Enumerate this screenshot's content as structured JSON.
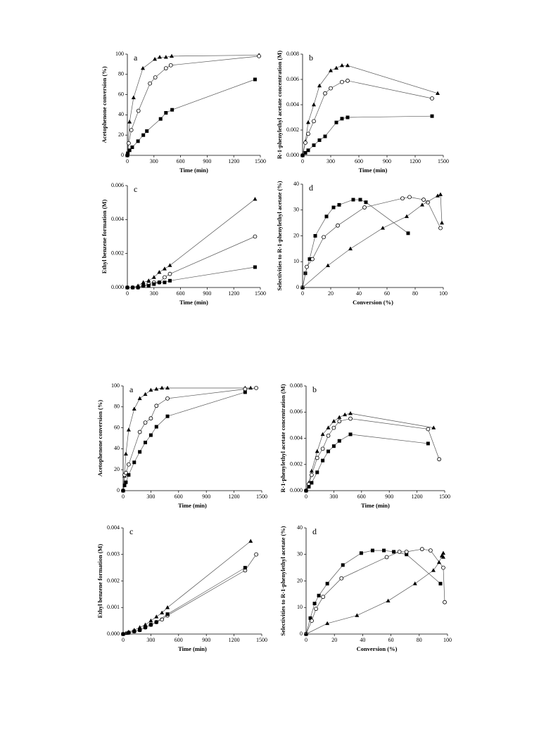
{
  "chart_data": [
    {
      "type": "line",
      "label": "a",
      "xlabel": "Time (min)",
      "ylabel": "Acetophenone conversion (%)",
      "xlim": [
        0,
        1500
      ],
      "xticks": [
        0,
        300,
        600,
        900,
        1200,
        1500
      ],
      "ylim": [
        0,
        100
      ],
      "yticks": [
        0,
        20,
        40,
        60,
        80,
        100
      ],
      "series": [
        {
          "marker": "triangle",
          "color": "#000000",
          "x": [
            0,
            25,
            70,
            175,
            310,
            365,
            435,
            500,
            1485
          ],
          "values": [
            0,
            33,
            57,
            86,
            95,
            97,
            97,
            98,
            99
          ]
        },
        {
          "marker": "circle",
          "color": "#000000",
          "x": [
            0,
            15,
            45,
            125,
            255,
            315,
            435,
            490,
            1485
          ],
          "values": [
            0,
            12,
            25,
            44,
            71,
            77,
            86,
            89,
            98
          ]
        },
        {
          "marker": "square",
          "color": "#000000",
          "x": [
            0,
            5,
            25,
            55,
            120,
            180,
            220,
            375,
            435,
            505,
            1440
          ],
          "values": [
            0,
            2,
            5,
            8,
            14,
            20,
            24,
            36,
            42,
            45,
            75
          ]
        }
      ]
    },
    {
      "type": "line",
      "label": "b",
      "xlabel": "Time (min)",
      "ylabel": "R-1-phenylethyl acetate concentration (M)",
      "xlim": [
        0,
        1500
      ],
      "xticks": [
        0,
        300,
        600,
        900,
        1200,
        1500
      ],
      "ylim": [
        0,
        0.008
      ],
      "yticks": [
        {
          "value": 0,
          "label": "0.000"
        },
        {
          "value": 0.002,
          "label": "0.002"
        },
        {
          "value": 0.004,
          "label": "0.004"
        },
        {
          "value": 0.006,
          "label": "0.006"
        },
        {
          "value": 0.008,
          "label": "0.008"
        }
      ],
      "series": [
        {
          "marker": "triangle",
          "color": "#000000",
          "x": [
            0,
            30,
            60,
            120,
            180,
            300,
            360,
            420,
            480,
            1440
          ],
          "values": [
            0,
            0.0011,
            0.0026,
            0.004,
            0.0055,
            0.0067,
            0.0069,
            0.0071,
            0.0071,
            0.0049
          ]
        },
        {
          "marker": "circle",
          "color": "#000000",
          "x": [
            0,
            30,
            60,
            120,
            240,
            300,
            420,
            480,
            1380
          ],
          "values": [
            0,
            0.001,
            0.0017,
            0.0027,
            0.0049,
            0.0053,
            0.0058,
            0.0059,
            0.0045
          ]
        },
        {
          "marker": "square",
          "color": "#000000",
          "x": [
            0,
            30,
            60,
            120,
            180,
            240,
            360,
            420,
            480,
            1380
          ],
          "values": [
            0,
            0.0002,
            0.0004,
            0.0008,
            0.0012,
            0.0015,
            0.0026,
            0.0029,
            0.003,
            0.0031
          ]
        }
      ]
    },
    {
      "type": "line",
      "label": "c",
      "xlabel": "Time (min)",
      "ylabel": "Ethyl benzene formation (M)",
      "xlim": [
        0,
        1500
      ],
      "xticks": [
        0,
        300,
        600,
        900,
        1200,
        1500
      ],
      "ylim": [
        0,
        0.006
      ],
      "yticks": [
        {
          "value": 0,
          "label": "0.000"
        },
        {
          "value": 0.002,
          "label": "0.002"
        },
        {
          "value": 0.004,
          "label": "0.004"
        },
        {
          "value": 0.006,
          "label": "0.006"
        }
      ],
      "series": [
        {
          "marker": "triangle",
          "color": "#000000",
          "x": [
            0,
            60,
            120,
            180,
            240,
            300,
            360,
            420,
            480,
            1440
          ],
          "values": [
            0,
            0,
            0.0001,
            0.0003,
            0.0004,
            0.0006,
            0.0009,
            0.0011,
            0.0013,
            0.0052
          ]
        },
        {
          "marker": "circle",
          "color": "#000000",
          "x": [
            0,
            60,
            120,
            180,
            240,
            300,
            360,
            420,
            480,
            1440
          ],
          "values": [
            0,
            0,
            0,
            0.0001,
            0.0002,
            0.0003,
            0.0003,
            0.0006,
            0.0008,
            0.003
          ]
        },
        {
          "marker": "square",
          "color": "#000000",
          "x": [
            0,
            60,
            120,
            180,
            240,
            300,
            360,
            420,
            480,
            1440
          ],
          "values": [
            0,
            0,
            0,
            0.0001,
            0.0001,
            0.0002,
            0.0003,
            0.0003,
            0.0004,
            0.0012
          ]
        }
      ]
    },
    {
      "type": "line",
      "label": "d",
      "xlabel": "Conversion (%)",
      "ylabel": "Selectivities to R-1-phenylethyl acetate (%)",
      "xlim": [
        0,
        100
      ],
      "xticks": [
        0,
        20,
        40,
        60,
        80,
        100
      ],
      "ylim": [
        0,
        40
      ],
      "yticks": [
        0,
        10,
        20,
        30,
        40
      ],
      "series": [
        {
          "marker": "square",
          "color": "#000000",
          "x": [
            0,
            2,
            5,
            9,
            17,
            22,
            26,
            36,
            41,
            45,
            75
          ],
          "values": [
            0,
            5.5,
            11,
            20,
            27.5,
            31,
            32,
            34,
            34,
            33,
            21
          ]
        },
        {
          "marker": "circle",
          "color": "#000000",
          "x": [
            0,
            3,
            7,
            15,
            25,
            44,
            71,
            76,
            86,
            89,
            98
          ],
          "values": [
            0,
            8,
            11,
            19.5,
            24,
            31,
            34.5,
            35,
            34,
            33,
            23
          ]
        },
        {
          "marker": "triangle",
          "color": "#000000",
          "x": [
            0,
            18,
            34,
            57,
            74,
            85,
            96,
            98,
            99
          ],
          "values": [
            0,
            8.5,
            15,
            23,
            27.5,
            32,
            35.5,
            36,
            25
          ]
        }
      ]
    },
    {
      "type": "line",
      "label": "a",
      "xlabel": "Time (min)",
      "ylabel": "Acetophenone conversion (%)",
      "xlim": [
        0,
        1500
      ],
      "xticks": [
        0,
        300,
        600,
        900,
        1200,
        1500
      ],
      "ylim": [
        0,
        100
      ],
      "yticks": [
        0,
        20,
        40,
        60,
        80,
        100
      ],
      "series": [
        {
          "marker": "triangle",
          "color": "#000000",
          "x": [
            0,
            15,
            30,
            60,
            120,
            180,
            240,
            300,
            360,
            420,
            480,
            1320,
            1380
          ],
          "values": [
            0,
            14,
            35,
            58,
            78,
            88,
            92,
            96,
            97,
            98,
            98,
            98,
            98
          ]
        },
        {
          "marker": "circle",
          "color": "#000000",
          "x": [
            0,
            15,
            30,
            60,
            180,
            240,
            300,
            360,
            480,
            1320,
            1440
          ],
          "values": [
            0,
            15,
            17,
            25,
            56,
            65,
            69,
            81,
            88,
            97,
            98
          ]
        },
        {
          "marker": "square",
          "color": "#000000",
          "x": [
            0,
            15,
            30,
            60,
            120,
            180,
            240,
            300,
            360,
            480,
            1320
          ],
          "values": [
            0,
            5,
            8,
            15,
            27,
            37,
            46,
            53,
            61,
            71,
            94
          ]
        }
      ]
    },
    {
      "type": "line",
      "label": "b",
      "xlabel": "Time (min)",
      "ylabel": "R-1-phenylethyl acetate concentration (M)",
      "xlim": [
        0,
        1500
      ],
      "xticks": [
        0,
        300,
        600,
        900,
        1200,
        1500
      ],
      "ylim": [
        0,
        0.008
      ],
      "yticks": [
        {
          "value": 0,
          "label": "0.000"
        },
        {
          "value": 0.002,
          "label": "0.002"
        },
        {
          "value": 0.004,
          "label": "0.004"
        },
        {
          "value": 0.006,
          "label": "0.006"
        },
        {
          "value": 0.008,
          "label": "0.008"
        }
      ],
      "series": [
        {
          "marker": "triangle",
          "color": "#000000",
          "x": [
            0,
            30,
            60,
            120,
            180,
            240,
            300,
            360,
            420,
            480,
            1380
          ],
          "values": [
            0,
            0.0006,
            0.0015,
            0.003,
            0.0043,
            0.0048,
            0.0053,
            0.0056,
            0.0058,
            0.0059,
            0.0048
          ]
        },
        {
          "marker": "circle",
          "color": "#000000",
          "x": [
            0,
            30,
            60,
            120,
            180,
            240,
            300,
            360,
            480,
            1320,
            1440
          ],
          "values": [
            0,
            0.0005,
            0.0012,
            0.0025,
            0.0032,
            0.0042,
            0.0048,
            0.0053,
            0.0055,
            0.0047,
            0.0024
          ]
        },
        {
          "marker": "square",
          "color": "#000000",
          "x": [
            0,
            30,
            60,
            120,
            180,
            240,
            300,
            360,
            480,
            1320
          ],
          "values": [
            0,
            0.0003,
            0.0006,
            0.0014,
            0.0023,
            0.003,
            0.0034,
            0.0038,
            0.0043,
            0.0036
          ]
        }
      ]
    },
    {
      "type": "line",
      "label": "c",
      "xlabel": "Time (min)",
      "ylabel": "Ethyl benzene formation (M)",
      "xlim": [
        0,
        1500
      ],
      "xticks": [
        0,
        300,
        600,
        900,
        1200,
        1500
      ],
      "ylim": [
        0,
        0.004
      ],
      "yticks": [
        {
          "value": 0,
          "label": "0.000"
        },
        {
          "value": 0.001,
          "label": "0.001"
        },
        {
          "value": 0.002,
          "label": "0.002"
        },
        {
          "value": 0.003,
          "label": "0.003"
        },
        {
          "value": 0.004,
          "label": "0.004"
        }
      ],
      "series": [
        {
          "marker": "triangle",
          "color": "#000000",
          "x": [
            0,
            30,
            60,
            120,
            180,
            240,
            300,
            360,
            420,
            480,
            1380
          ],
          "values": [
            0,
            3e-05,
            8e-05,
            0.00015,
            0.00025,
            0.00035,
            0.0005,
            0.00065,
            0.0008,
            0.001,
            0.0035
          ]
        },
        {
          "marker": "circle",
          "color": "#000000",
          "x": [
            0,
            60,
            120,
            180,
            240,
            300,
            360,
            420,
            480,
            1320,
            1440
          ],
          "values": [
            0,
            5e-05,
            0.0001,
            0.00015,
            0.00025,
            0.00035,
            0.00045,
            0.00055,
            0.0007,
            0.0024,
            0.003
          ]
        },
        {
          "marker": "square",
          "color": "#000000",
          "x": [
            0,
            60,
            120,
            180,
            240,
            300,
            360,
            480,
            1320
          ],
          "values": [
            0,
            5e-05,
            0.0001,
            0.00015,
            0.00025,
            0.00035,
            0.00045,
            0.00075,
            0.0025
          ]
        }
      ]
    },
    {
      "type": "line",
      "label": "d",
      "xlabel": "Conversion (%)",
      "ylabel": "Selectivities to R-1-phenylethyl acetate (%)",
      "xlim": [
        0,
        100
      ],
      "xticks": [
        0,
        20,
        40,
        60,
        80,
        100
      ],
      "ylim": [
        0,
        40
      ],
      "yticks": [
        0,
        10,
        20,
        30,
        40
      ],
      "series": [
        {
          "marker": "square",
          "color": "#000000",
          "x": [
            0,
            3,
            6,
            9,
            15,
            26,
            39,
            47,
            55,
            62,
            71,
            95
          ],
          "values": [
            0,
            6,
            11.5,
            14.5,
            19,
            26,
            30.5,
            31.5,
            31.5,
            31,
            30,
            19
          ]
        },
        {
          "marker": "circle",
          "color": "#000000",
          "x": [
            0,
            4,
            7,
            12,
            25,
            57,
            66,
            71,
            82,
            88,
            97,
            98
          ],
          "values": [
            0,
            5,
            9.5,
            14,
            21,
            29,
            31,
            31,
            32,
            31.5,
            25,
            12
          ]
        },
        {
          "marker": "triangle",
          "color": "#000000",
          "x": [
            0,
            15,
            36,
            58,
            77,
            90,
            94,
            96,
            97,
            97
          ],
          "values": [
            0,
            4,
            7,
            12.5,
            19,
            24,
            27,
            29.5,
            30.5,
            29
          ]
        }
      ]
    }
  ]
}
